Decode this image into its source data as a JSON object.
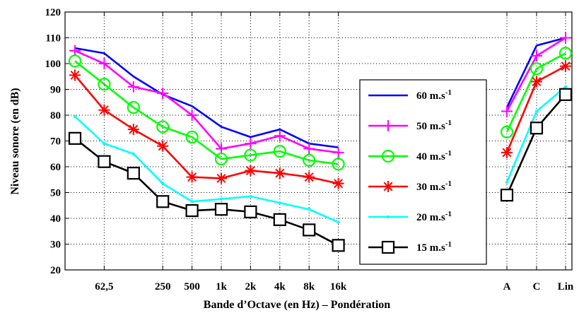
{
  "chart_data": {
    "type": "line",
    "xlabel": "Bande d’Octave (en Hz) – Pondération",
    "ylabel": "Niveau sonore (en dB)",
    "ylim": [
      20,
      120
    ],
    "yticks": [
      20,
      30,
      40,
      50,
      60,
      70,
      80,
      90,
      100,
      110,
      120
    ],
    "grid": true,
    "legend_position": "center-right",
    "octave_positions": [
      1,
      2,
      3,
      4,
      5,
      6,
      7,
      8,
      9,
      10
    ],
    "octave_tick_labels": [
      {
        "pos": 2,
        "label": "62,5"
      },
      {
        "pos": 4,
        "label": "250"
      },
      {
        "pos": 5,
        "label": "500"
      },
      {
        "pos": 6,
        "label": "1k"
      },
      {
        "pos": 7,
        "label": "2k"
      },
      {
        "pos": 8,
        "label": "4k"
      },
      {
        "pos": 9,
        "label": "8k"
      },
      {
        "pos": 10,
        "label": "16k"
      }
    ],
    "weighting_categories": [
      "A",
      "C",
      "Lin"
    ],
    "series": [
      {
        "name": "60 m.s",
        "sup": "-1",
        "color": "#0000ff",
        "marker": "none",
        "octave_values": [
          106,
          104,
          95,
          88,
          83.5,
          75.5,
          71.5,
          74.5,
          69,
          67.5
        ],
        "weighting_values": [
          83,
          107,
          110
        ]
      },
      {
        "name": "50 m.s",
        "sup": "-1",
        "color": "#ff00ff",
        "marker": "plus",
        "octave_values": [
          105,
          100,
          91,
          88.5,
          80,
          67,
          69,
          72,
          67,
          65.5
        ],
        "weighting_values": [
          81.5,
          103,
          110
        ]
      },
      {
        "name": "40 m.s",
        "sup": "-1",
        "color": "#00ff00",
        "marker": "circle",
        "octave_values": [
          101,
          92,
          83,
          75.5,
          71.5,
          63,
          64.5,
          66,
          62.5,
          61
        ],
        "weighting_values": [
          73.5,
          98,
          104
        ]
      },
      {
        "name": "30 m.s",
        "sup": "-1",
        "color": "#ff0000",
        "marker": "star",
        "octave_values": [
          95.5,
          82,
          74.5,
          68,
          56,
          55.5,
          58.5,
          57.5,
          56,
          53.5
        ],
        "weighting_values": [
          65.5,
          93,
          99
        ]
      },
      {
        "name": "20 m.s",
        "sup": "-1",
        "color": "#00ffff",
        "marker": "dot",
        "octave_values": [
          79.5,
          69,
          65,
          53.5,
          46.5,
          47.5,
          48.5,
          46,
          43.5,
          38.5
        ],
        "weighting_values": [
          54,
          81.5,
          91
        ]
      },
      {
        "name": "15 m.s",
        "sup": "-1",
        "color": "#000000",
        "marker": "square",
        "octave_values": [
          71,
          62,
          57.5,
          46.5,
          43,
          43.5,
          42.5,
          39.5,
          35.5,
          29.5
        ],
        "weighting_values": [
          49,
          75,
          88
        ]
      }
    ]
  }
}
